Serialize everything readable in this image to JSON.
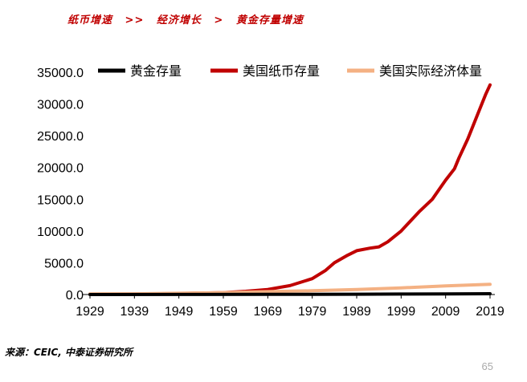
{
  "header": {
    "part1": "纸币增速",
    "sep1": ">>",
    "part2": "经济增长",
    "sep2": ">",
    "part3": "黄金存量增速"
  },
  "colors": {
    "gold": "#000000",
    "money": "#c00000",
    "economy": "#f4b183",
    "header": "#c00000"
  },
  "chart_data": {
    "type": "line",
    "ylim": [
      0,
      35000
    ],
    "yticks": [
      "0.0",
      "5000.0",
      "10000.0",
      "15000.0",
      "20000.0",
      "25000.0",
      "30000.0",
      "35000.0"
    ],
    "ytick_values": [
      0,
      5000,
      10000,
      15000,
      20000,
      25000,
      30000,
      35000
    ],
    "xlim": [
      1929,
      2019
    ],
    "xticks": [
      "1929",
      "1939",
      "1949",
      "1959",
      "1969",
      "1979",
      "1989",
      "1999",
      "2009",
      "2019"
    ],
    "legend_position": "top",
    "series": [
      {
        "name": "黄金存量",
        "color": "#000000",
        "points": [
          [
            1929,
            5
          ],
          [
            1949,
            10
          ],
          [
            1969,
            20
          ],
          [
            1979,
            30
          ],
          [
            1989,
            50
          ],
          [
            1999,
            70
          ],
          [
            2009,
            100
          ],
          [
            2019,
            130
          ]
        ]
      },
      {
        "name": "美国纸币存量",
        "color": "#c00000",
        "points": [
          [
            1929,
            50
          ],
          [
            1939,
            80
          ],
          [
            1949,
            170
          ],
          [
            1959,
            300
          ],
          [
            1964,
            500
          ],
          [
            1969,
            800
          ],
          [
            1974,
            1400
          ],
          [
            1979,
            2500
          ],
          [
            1982,
            3800
          ],
          [
            1984,
            5000
          ],
          [
            1987,
            6200
          ],
          [
            1989,
            6900
          ],
          [
            1992,
            7300
          ],
          [
            1994,
            7500
          ],
          [
            1996,
            8300
          ],
          [
            1999,
            10000
          ],
          [
            2001,
            11500
          ],
          [
            2003,
            13000
          ],
          [
            2006,
            15000
          ],
          [
            2008,
            17000
          ],
          [
            2009,
            18000
          ],
          [
            2011,
            19800
          ],
          [
            2012,
            21500
          ],
          [
            2014,
            24500
          ],
          [
            2016,
            28000
          ],
          [
            2018,
            31500
          ],
          [
            2019,
            33000
          ]
        ]
      },
      {
        "name": "美国实际经济体量",
        "color": "#f4b183",
        "points": [
          [
            1929,
            100
          ],
          [
            1939,
            120
          ],
          [
            1949,
            200
          ],
          [
            1959,
            300
          ],
          [
            1969,
            450
          ],
          [
            1979,
            600
          ],
          [
            1989,
            800
          ],
          [
            1999,
            1050
          ],
          [
            2009,
            1350
          ],
          [
            2019,
            1600
          ]
        ]
      }
    ]
  },
  "source": "来源：CEIC, 中泰证券研究所",
  "page_number": "65"
}
